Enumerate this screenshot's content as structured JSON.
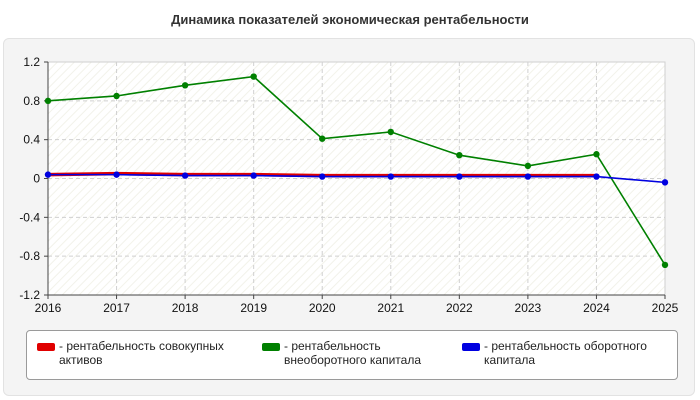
{
  "chart_data": {
    "type": "line",
    "title": "Динамика показателей экономическая рентабельности",
    "xlabel": "",
    "ylabel": "",
    "categories": [
      "2016",
      "2017",
      "2018",
      "2019",
      "2020",
      "2021",
      "2022",
      "2023",
      "2024",
      "2025"
    ],
    "ylim": [
      -1.2,
      1.2
    ],
    "yticks": [
      "1.2",
      "0.8",
      "0.4",
      "0",
      "-0.4",
      "-0.8",
      "-1.2"
    ],
    "grid": true,
    "legend_position": "bottom",
    "series": [
      {
        "name": "- рентабельность совокупных активов",
        "color": "#e00000",
        "values": [
          0.04,
          0.05,
          0.04,
          0.04,
          0.03,
          0.03,
          0.03,
          0.03,
          0.03,
          null
        ]
      },
      {
        "name": "- рентабельность внеоборотного капитала",
        "color": "#008000",
        "values": [
          0.8,
          0.85,
          0.96,
          1.05,
          0.41,
          0.48,
          0.24,
          0.13,
          0.25,
          -0.89
        ]
      },
      {
        "name": "- рентабельность оборотного капитала",
        "color": "#0000e0",
        "values": [
          0.04,
          0.04,
          0.03,
          0.03,
          0.02,
          0.02,
          0.02,
          0.02,
          0.02,
          -0.04
        ]
      }
    ]
  }
}
